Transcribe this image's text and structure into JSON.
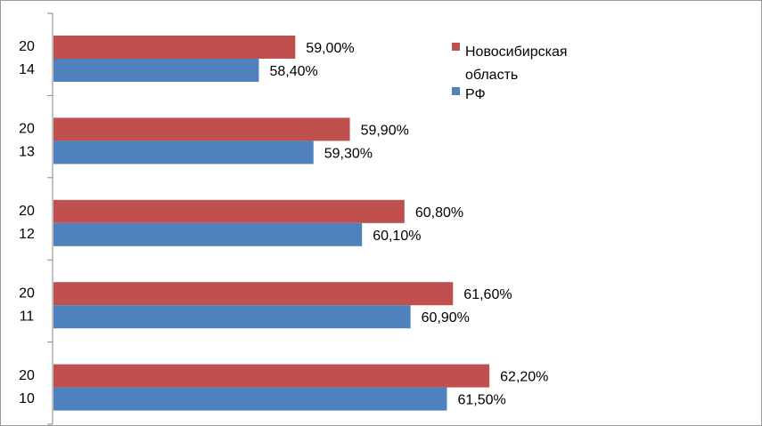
{
  "chart_data": {
    "type": "bar",
    "orientation": "horizontal",
    "categories": [
      [
        "20",
        "14"
      ],
      [
        "20",
        "13"
      ],
      [
        "20",
        "12"
      ],
      [
        "20",
        "11"
      ],
      [
        "20",
        "10"
      ]
    ],
    "series": [
      {
        "name": "Новосибирская область",
        "name_lines": [
          "Новосибирская",
          "область"
        ],
        "color": "#c0504d",
        "values": [
          59.0,
          59.9,
          60.8,
          61.6,
          62.2
        ],
        "labels": [
          "59,00%",
          "59,90%",
          "60,80%",
          "61,60%",
          "62,20%"
        ]
      },
      {
        "name": "РФ",
        "name_lines": [
          "РФ"
        ],
        "color": "#4f81bd",
        "values": [
          58.4,
          59.3,
          60.1,
          60.9,
          61.5
        ],
        "labels": [
          "58,40%",
          "59,30%",
          "60,10%",
          "60,90%",
          "61,50%"
        ]
      }
    ],
    "xlim": [
      55.0,
      62.8
    ],
    "legend": "top-right",
    "grid": false
  }
}
